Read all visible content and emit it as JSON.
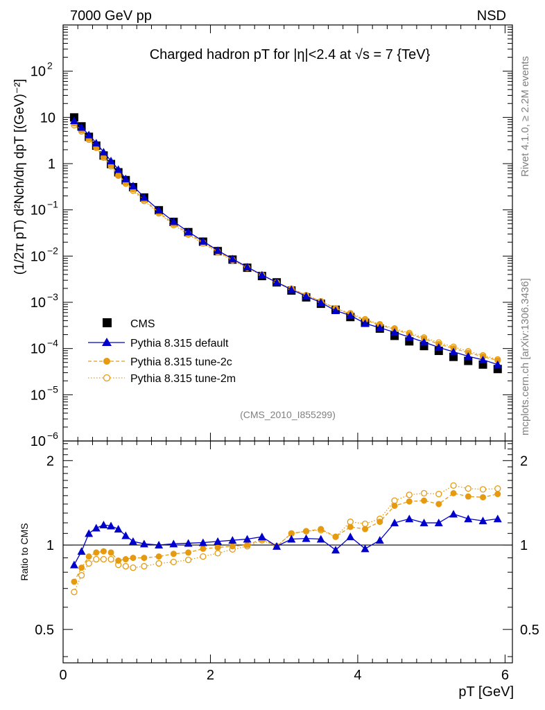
{
  "header": {
    "left": "7000 GeV pp",
    "right": "NSD"
  },
  "side": {
    "rivet": "Rivet 4.1.0, ≥ 2.2M events",
    "mcplots": "mcplots.cern.ch [arXiv:1306.3436]"
  },
  "colors": {
    "cms": "#000000",
    "default": "#0000cc",
    "tune2c": "#e69a10",
    "tune2m": "#e69a10"
  },
  "chart_data": [
    {
      "type": "scatter",
      "scale": "log",
      "title": "Charged hadron pT for |η|<2.4 at √s = 7 {TeV}",
      "ylabel": "(1/2π pT) d²Nch/dη dpT [(GeV)⁻²]",
      "xlabel": "pT [GeV]",
      "xlim": [
        0,
        6.1
      ],
      "ylim": [
        1e-06,
        1000
      ],
      "analysis_id": "(CMS_2010_I855299)",
      "legend_position": "middle-left",
      "yticks": [
        {
          "v": 1e-06,
          "base": "10",
          "exp": "−6"
        },
        {
          "v": 1e-05,
          "base": "10",
          "exp": "−5"
        },
        {
          "v": 0.0001,
          "base": "10",
          "exp": "−4"
        },
        {
          "v": 0.001,
          "base": "10",
          "exp": "−3"
        },
        {
          "v": 0.01,
          "base": "10",
          "exp": "−2"
        },
        {
          "v": 0.1,
          "base": "10",
          "exp": "−1"
        },
        {
          "v": 1,
          "base": "1",
          "exp": ""
        },
        {
          "v": 10,
          "base": "10",
          "exp": ""
        },
        {
          "v": 100,
          "base": "10",
          "exp": "2"
        }
      ],
      "x": [
        0.15,
        0.25,
        0.35,
        0.45,
        0.55,
        0.65,
        0.75,
        0.85,
        0.95,
        1.1,
        1.3,
        1.5,
        1.7,
        1.9,
        2.1,
        2.3,
        2.5,
        2.7,
        2.9,
        3.1,
        3.3,
        3.5,
        3.7,
        3.9,
        4.1,
        4.3,
        4.5,
        4.7,
        4.9,
        5.1,
        5.3,
        5.5,
        5.7,
        5.9
      ],
      "series": [
        {
          "name": "CMS",
          "marker": "square-filled",
          "values": [
            10.0,
            6.4,
            3.8,
            2.45,
            1.5,
            0.98,
            0.65,
            0.44,
            0.31,
            0.185,
            0.098,
            0.055,
            0.033,
            0.0205,
            0.0128,
            0.0084,
            0.0056,
            0.0037,
            0.0027,
            0.0018,
            0.00128,
            0.00093,
            0.00069,
            0.00048,
            0.00036,
            0.00027,
            0.000188,
            0.000143,
            0.000113,
            8.9e-05,
            6.6e-05,
            5.4e-05,
            4.5e-05,
            3.6e-05
          ]
        },
        {
          "name": "Pythia 8.315 default",
          "marker": "triangle-filled",
          "values": [
            8.5,
            6.1,
            4.2,
            2.8,
            1.78,
            1.15,
            0.75,
            0.47,
            0.33,
            0.187,
            0.099,
            0.056,
            0.0335,
            0.021,
            0.0132,
            0.0087,
            0.0058,
            0.0039,
            0.0027,
            0.00189,
            0.00135,
            0.00099,
            0.00066,
            0.00052,
            0.00035,
            0.000281,
            0.000225,
            0.000177,
            0.000138,
            0.000106,
            8.5e-05,
            6.8e-05,
            5.7e-05,
            4.5e-05
          ]
        },
        {
          "name": "Pythia 8.315 tune-2c",
          "marker": "circle-filled",
          "values": [
            7.4,
            5.3,
            3.5,
            2.3,
            1.42,
            0.93,
            0.57,
            0.39,
            0.28,
            0.166,
            0.088,
            0.05,
            0.031,
            0.0199,
            0.0127,
            0.0084,
            0.0057,
            0.0039,
            0.0027,
            0.00198,
            0.00143,
            0.00106,
            0.00074,
            0.000555,
            0.00041,
            0.000325,
            0.00026,
            0.000205,
            0.000163,
            0.000125,
            0.000101,
            8.1e-05,
            6.7e-05,
            5.5e-05
          ]
        },
        {
          "name": "Pythia 8.315 tune-2m",
          "marker": "circle-open",
          "values": [
            6.8,
            5.0,
            3.3,
            2.2,
            1.35,
            0.88,
            0.55,
            0.37,
            0.26,
            0.156,
            0.084,
            0.047,
            0.0292,
            0.0187,
            0.012,
            0.0081,
            0.0055,
            0.00385,
            0.00266,
            0.00197,
            0.00143,
            0.00105,
            0.00074,
            0.00058,
            0.00043,
            0.000335,
            0.000272,
            0.000217,
            0.000173,
            0.000135,
            0.000109,
            8.7e-05,
            7.1e-05,
            5.8e-05
          ]
        }
      ]
    },
    {
      "type": "line",
      "ylabel": "Ratio to CMS",
      "ylim": [
        0.38,
        2.35
      ],
      "xticks": [
        0,
        2,
        4,
        6
      ],
      "yticks_left": [
        "2",
        "1",
        "0.5"
      ],
      "yticks_right": [
        "2",
        "1",
        "0.5"
      ],
      "x": [
        0.15,
        0.25,
        0.35,
        0.45,
        0.55,
        0.65,
        0.75,
        0.85,
        0.95,
        1.1,
        1.3,
        1.5,
        1.7,
        1.9,
        2.1,
        2.3,
        2.5,
        2.7,
        2.9,
        3.1,
        3.3,
        3.5,
        3.7,
        3.9,
        4.1,
        4.3,
        4.5,
        4.7,
        4.9,
        5.1,
        5.3,
        5.5,
        5.7,
        5.9
      ],
      "series": [
        {
          "name": "Pythia 8.315 default",
          "values": [
            0.85,
            0.95,
            1.1,
            1.15,
            1.18,
            1.17,
            1.14,
            1.08,
            1.03,
            1.01,
            1.0,
            1.01,
            1.015,
            1.02,
            1.03,
            1.04,
            1.05,
            1.07,
            0.99,
            1.05,
            1.055,
            1.05,
            0.96,
            1.07,
            0.97,
            1.04,
            1.2,
            1.24,
            1.2,
            1.2,
            1.29,
            1.24,
            1.22,
            1.24
          ]
        },
        {
          "name": "Pythia 8.315 tune-2c",
          "values": [
            0.74,
            0.83,
            0.91,
            0.94,
            0.95,
            0.94,
            0.88,
            0.89,
            0.9,
            0.9,
            0.91,
            0.93,
            0.94,
            0.97,
            0.98,
            0.99,
            1.0,
            1.05,
            0.99,
            1.1,
            1.12,
            1.14,
            1.07,
            1.16,
            1.14,
            1.21,
            1.38,
            1.43,
            1.44,
            1.4,
            1.53,
            1.49,
            1.48,
            1.52
          ]
        },
        {
          "name": "Pythia 8.315 tune-2m",
          "values": [
            0.68,
            0.78,
            0.86,
            0.89,
            0.89,
            0.89,
            0.85,
            0.84,
            0.83,
            0.84,
            0.86,
            0.87,
            0.885,
            0.91,
            0.935,
            0.965,
            0.99,
            1.04,
            0.99,
            1.1,
            1.12,
            1.13,
            1.07,
            1.21,
            1.19,
            1.24,
            1.44,
            1.51,
            1.53,
            1.52,
            1.63,
            1.59,
            1.58,
            1.59
          ]
        }
      ]
    }
  ]
}
